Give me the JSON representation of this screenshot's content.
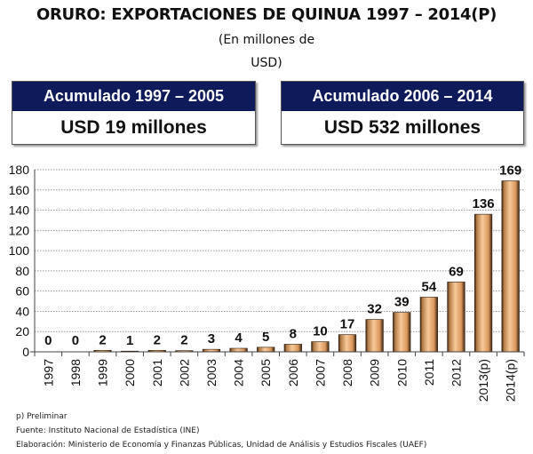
{
  "header": {
    "title": "ORURO: EXPORTACIONES DE QUINUA 1997 – 2014(P)",
    "subtitle_line1": "(En millones de",
    "subtitle_line2": "USD)"
  },
  "summary_boxes": [
    {
      "label": "Acumulado 1997 – 2005",
      "value": "USD 19 millones"
    },
    {
      "label": "Acumulado 2006 – 2014",
      "value": "USD 532 millones"
    }
  ],
  "colors": {
    "box_header": "#0f1a5a",
    "bar": "#e8a96a",
    "bar_dark": "#3a2410",
    "bar_light": "#f8c99a"
  },
  "chart_data": {
    "type": "bar",
    "title": "ORURO: EXPORTACIONES DE QUINUA 1997 – 2014(P)",
    "ylabel": "En millones de USD",
    "xlabel": "",
    "categories": [
      "1997",
      "1998",
      "1999",
      "2000",
      "2001",
      "2002",
      "2003",
      "2004",
      "2005",
      "2006",
      "2007",
      "2008",
      "2009",
      "2010",
      "2011",
      "2012",
      "2013(p)",
      "2014(p)"
    ],
    "values": [
      0,
      0,
      2,
      1,
      2,
      2,
      3,
      4,
      5,
      8,
      10,
      17,
      32,
      39,
      54,
      69,
      136,
      169
    ],
    "bar_heights": [
      0,
      0,
      1.5,
      0.7,
      1.5,
      1.2,
      2.5,
      3.5,
      4.5,
      7.5,
      10,
      17,
      32,
      39,
      54,
      69,
      136,
      169
    ],
    "labels": [
      "0",
      "0",
      "2",
      "1",
      "2",
      "2",
      "3",
      "4",
      "5",
      "8",
      "10",
      "17",
      "32",
      "39",
      "54",
      "69",
      "136",
      "169"
    ],
    "ylim": [
      0,
      180
    ],
    "yticks": [
      0,
      20,
      40,
      60,
      80,
      100,
      120,
      140,
      160,
      180
    ],
    "grid": true,
    "legend": "none"
  },
  "footnotes": {
    "note": "p) Preliminar",
    "source": "Fuente: Instituto Nacional de Estadística (INE)",
    "elaboration": "Elaboración: Ministerio de Economía y Finanzas Públicas, Unidad de Análisis y Estudios Fiscales (UAEF)"
  }
}
